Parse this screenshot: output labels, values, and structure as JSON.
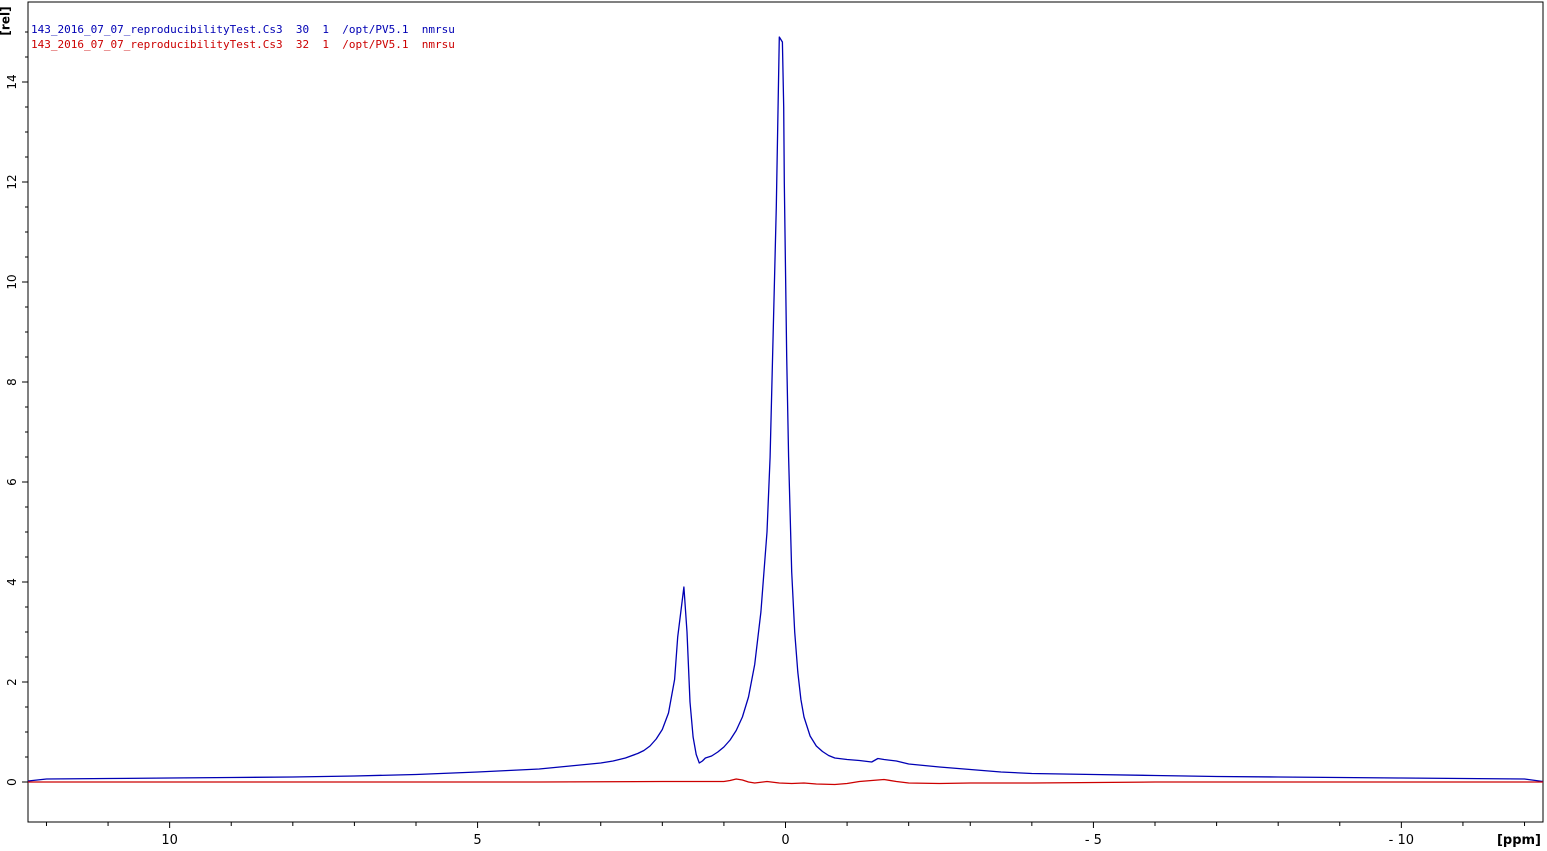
{
  "chart_data": {
    "type": "line",
    "xlabel": "[ppm]",
    "ylabel": "[rel]",
    "x_reversed": true,
    "xlim": [
      12.3,
      -12.3
    ],
    "ylim": [
      -0.8,
      15.6
    ],
    "x_ticks": [
      10,
      5,
      0,
      -5,
      -10
    ],
    "x_tick_labels": [
      "10",
      "5",
      "0",
      "- 5",
      "- 10"
    ],
    "y_ticks": [
      0,
      2,
      4,
      6,
      8,
      10,
      12,
      14
    ],
    "y_tick_labels": [
      "0",
      "2",
      "4",
      "6",
      "8",
      "10",
      "12",
      "14"
    ],
    "grid": false,
    "legend_position": "top-left",
    "series": [
      {
        "name": "143_2016_07_07_reproducibilityTest.Cs3  30  1  /opt/PV5.1  nmrsu",
        "color": "#0000b4",
        "x": [
          12.3,
          12.0,
          11.0,
          10.0,
          9.0,
          8.0,
          7.0,
          6.0,
          5.0,
          4.5,
          4.0,
          3.5,
          3.0,
          2.8,
          2.6,
          2.4,
          2.3,
          2.2,
          2.1,
          2.0,
          1.9,
          1.8,
          1.75,
          1.7,
          1.65,
          1.6,
          1.55,
          1.5,
          1.45,
          1.4,
          1.35,
          1.3,
          1.2,
          1.1,
          1.0,
          0.9,
          0.8,
          0.7,
          0.6,
          0.5,
          0.4,
          0.3,
          0.25,
          0.2,
          0.15,
          0.1,
          0.05,
          0.03,
          0.02,
          -0.02,
          -0.05,
          -0.1,
          -0.15,
          -0.2,
          -0.25,
          -0.3,
          -0.4,
          -0.5,
          -0.6,
          -0.7,
          -0.8,
          -1.0,
          -1.2,
          -1.4,
          -1.5,
          -1.6,
          -1.8,
          -2.0,
          -2.5,
          -3.0,
          -3.5,
          -4.0,
          -5.0,
          -6.0,
          -7.0,
          -8.0,
          -9.0,
          -10.0,
          -11.0,
          -12.0,
          -12.3
        ],
        "y": [
          0.02,
          0.06,
          0.07,
          0.08,
          0.09,
          0.1,
          0.12,
          0.15,
          0.2,
          0.23,
          0.26,
          0.32,
          0.38,
          0.42,
          0.48,
          0.57,
          0.63,
          0.72,
          0.86,
          1.05,
          1.38,
          2.05,
          2.9,
          3.4,
          3.9,
          3.0,
          1.6,
          0.9,
          0.55,
          0.38,
          0.42,
          0.48,
          0.52,
          0.6,
          0.7,
          0.84,
          1.03,
          1.3,
          1.7,
          2.35,
          3.4,
          5.0,
          6.5,
          9.0,
          11.5,
          14.9,
          14.8,
          13.5,
          12.0,
          8.5,
          6.5,
          4.2,
          3.0,
          2.2,
          1.65,
          1.3,
          0.92,
          0.72,
          0.61,
          0.53,
          0.48,
          0.45,
          0.43,
          0.4,
          0.47,
          0.45,
          0.42,
          0.36,
          0.3,
          0.25,
          0.2,
          0.17,
          0.15,
          0.13,
          0.11,
          0.1,
          0.09,
          0.08,
          0.07,
          0.06,
          0.01
        ]
      },
      {
        "name": "143_2016_07_07_reproducibilityTest.Cs3  32  1  /opt/PV5.1  nmrsu",
        "color": "#cc0000",
        "x": [
          12.3,
          6.0,
          4.0,
          2.0,
          1.0,
          0.9,
          0.8,
          0.7,
          0.6,
          0.5,
          0.3,
          0.1,
          -0.1,
          -0.3,
          -0.5,
          -0.8,
          -1.0,
          -1.2,
          -1.4,
          -1.6,
          -1.8,
          -2.0,
          -2.5,
          -3.0,
          -4.0,
          -6.0,
          -12.3
        ],
        "y": [
          0.0,
          0.0,
          0.0,
          0.01,
          0.01,
          0.03,
          0.06,
          0.04,
          0.0,
          -0.02,
          0.01,
          -0.02,
          -0.03,
          -0.02,
          -0.04,
          -0.05,
          -0.03,
          0.01,
          0.03,
          0.05,
          0.01,
          -0.02,
          -0.03,
          -0.02,
          -0.02,
          0.0,
          0.0
        ]
      }
    ]
  }
}
